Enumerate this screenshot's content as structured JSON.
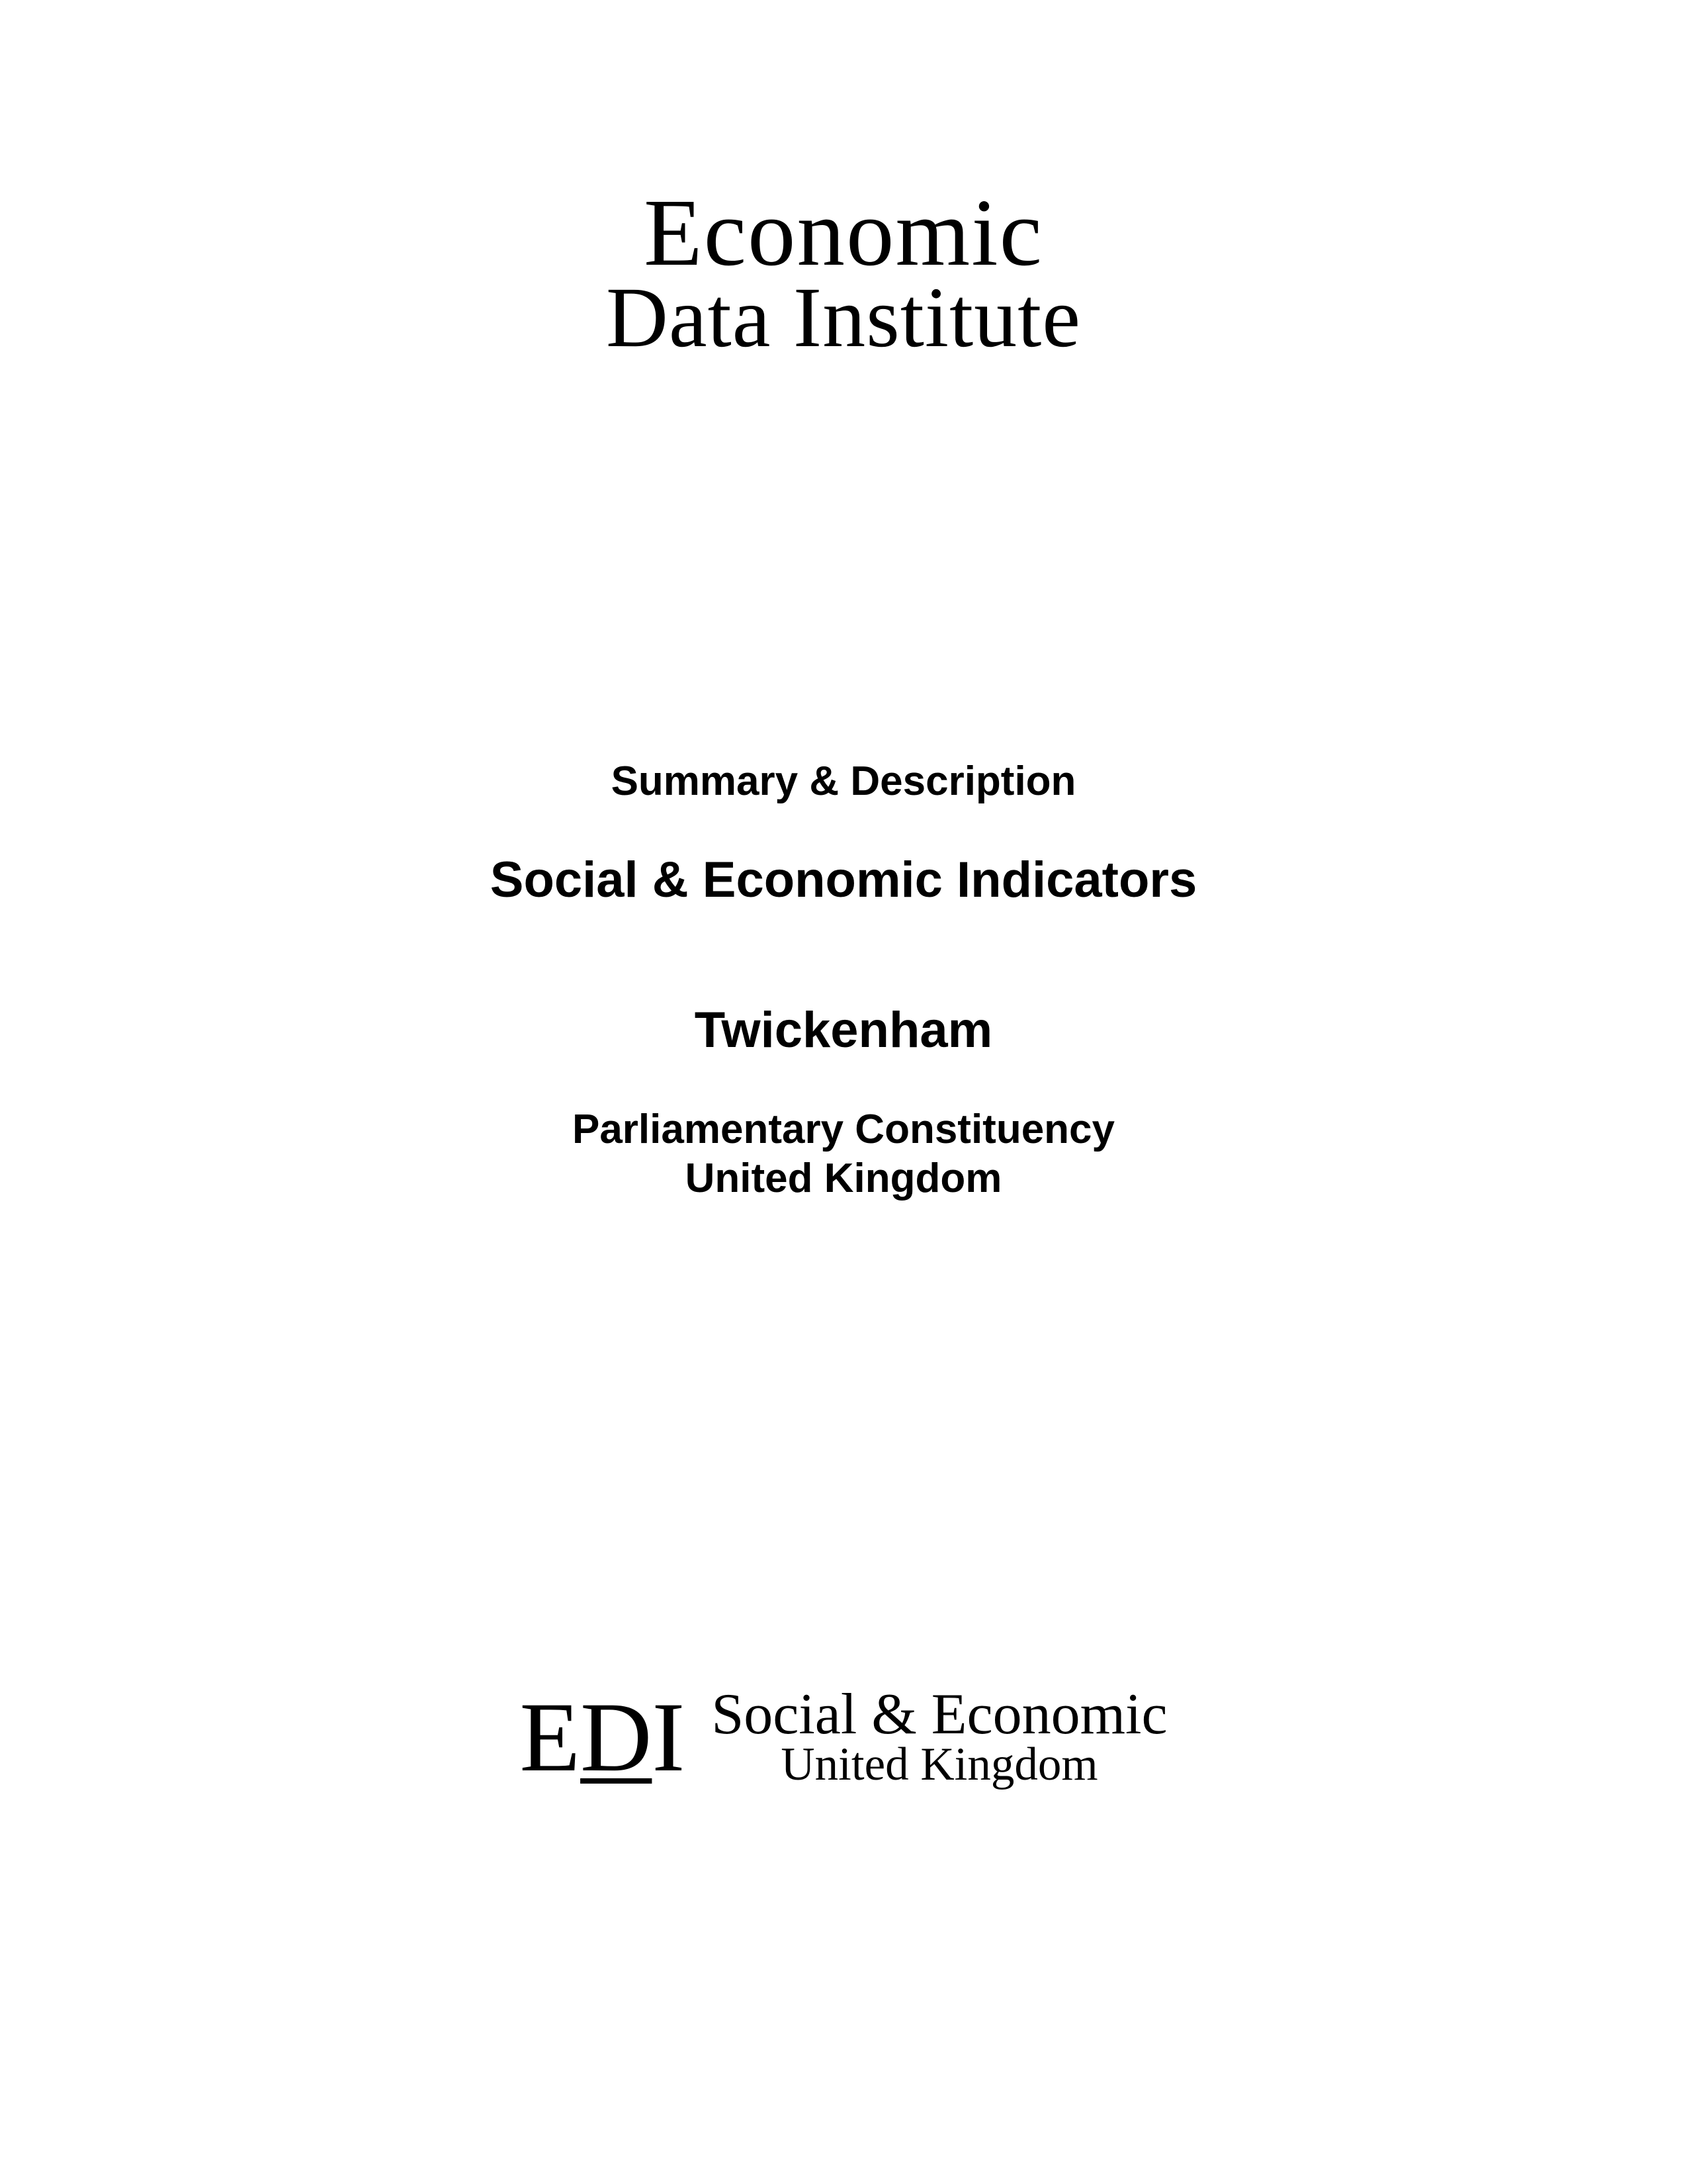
{
  "topLogo": {
    "line1": "Economic",
    "line2": "Data Institute"
  },
  "center": {
    "summary": "Summary & Description",
    "title": "Social & Economic Indicators",
    "location": "Twickenham",
    "subloc1": "Parliamentary Constituency",
    "subloc2": "United Kingdom"
  },
  "bottomLogo": {
    "mark_e": "E",
    "mark_d": "D",
    "mark_i": "I",
    "line1": "Social & Economic",
    "line2": "United Kingdom"
  },
  "colors": {
    "background": "#ffffff",
    "text": "#000000"
  }
}
